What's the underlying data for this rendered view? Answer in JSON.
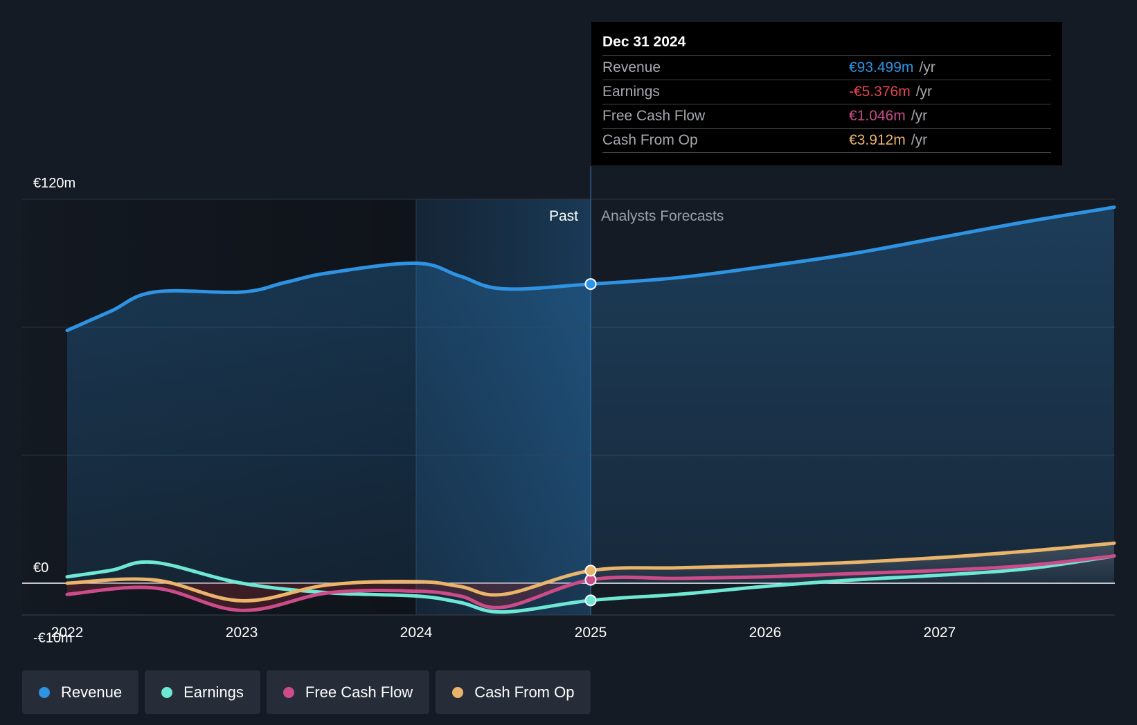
{
  "colors": {
    "revenue": "#2e93e2",
    "earnings": "#6ee8d4",
    "fcf": "#cc4c8a",
    "cfo": "#eab56a",
    "earnings_neg": "#e8434e"
  },
  "tooltip": {
    "date": "Dec 31 2024",
    "rows": [
      {
        "label": "Revenue",
        "value": "€93.499m",
        "unit": "/yr"
      },
      {
        "label": "Earnings",
        "value": "-€5.376m",
        "unit": "/yr"
      },
      {
        "label": "Free Cash Flow",
        "value": "€1.046m",
        "unit": "/yr"
      },
      {
        "label": "Cash From Op",
        "value": "€3.912m",
        "unit": "/yr"
      }
    ]
  },
  "legend": [
    {
      "label": "Revenue",
      "color": "#2e93e2"
    },
    {
      "label": "Earnings",
      "color": "#6ee8d4"
    },
    {
      "label": "Free Cash Flow",
      "color": "#cc4c8a"
    },
    {
      "label": "Cash From Op",
      "color": "#eab56a"
    }
  ],
  "chart_data": {
    "type": "line",
    "title": "",
    "xlabel": "",
    "ylabel": "",
    "xlim": [
      2022,
      2028
    ],
    "ylim": [
      -10,
      120
    ],
    "y_tick_labels": [
      "€120m",
      "€0",
      "-€10m"
    ],
    "y_tick_values": [
      120,
      0,
      -10
    ],
    "x_ticks": [
      2022,
      2023,
      2024,
      2025,
      2026,
      2027
    ],
    "past_label": "Past",
    "forecast_label": "Analysts Forecasts",
    "divider_x": 2025,
    "highlight_start_x": 2024,
    "series": [
      {
        "name": "Revenue",
        "points": [
          [
            2022,
            79
          ],
          [
            2022.25,
            85
          ],
          [
            2022.5,
            91
          ],
          [
            2023,
            91
          ],
          [
            2023.25,
            94
          ],
          [
            2023.5,
            97
          ],
          [
            2024,
            100
          ],
          [
            2024.25,
            96
          ],
          [
            2024.5,
            92
          ],
          [
            2025,
            93.5
          ],
          [
            2025.5,
            95.5
          ],
          [
            2026,
            99
          ],
          [
            2026.5,
            103
          ],
          [
            2027,
            108
          ],
          [
            2027.5,
            113
          ],
          [
            2028,
            117.5
          ]
        ]
      },
      {
        "name": "Earnings",
        "points": [
          [
            2022,
            2
          ],
          [
            2022.25,
            4
          ],
          [
            2022.5,
            6.5
          ],
          [
            2023,
            0
          ],
          [
            2023.5,
            -3
          ],
          [
            2024,
            -4
          ],
          [
            2024.25,
            -6
          ],
          [
            2024.5,
            -9
          ],
          [
            2025,
            -5.376
          ],
          [
            2025.5,
            -3.5
          ],
          [
            2026,
            -1
          ],
          [
            2026.5,
            1
          ],
          [
            2027,
            2.5
          ],
          [
            2027.5,
            4.5
          ],
          [
            2028,
            8.5
          ]
        ]
      },
      {
        "name": "Free Cash Flow",
        "points": [
          [
            2022,
            -3.5
          ],
          [
            2022.5,
            -1.5
          ],
          [
            2023,
            -8.5
          ],
          [
            2023.5,
            -3
          ],
          [
            2024,
            -2.5
          ],
          [
            2024.25,
            -4
          ],
          [
            2024.5,
            -7.5
          ],
          [
            2025,
            1.046
          ],
          [
            2025.5,
            1.5
          ],
          [
            2026,
            2
          ],
          [
            2026.5,
            3
          ],
          [
            2027,
            4
          ],
          [
            2027.5,
            5.5
          ],
          [
            2028,
            8.5
          ]
        ]
      },
      {
        "name": "Cash From Op",
        "points": [
          [
            2022,
            0
          ],
          [
            2022.5,
            1
          ],
          [
            2023,
            -5.5
          ],
          [
            2023.5,
            -0.5
          ],
          [
            2024,
            0.5
          ],
          [
            2024.25,
            -1
          ],
          [
            2024.5,
            -3.5
          ],
          [
            2025,
            3.912
          ],
          [
            2025.5,
            4.8
          ],
          [
            2026,
            5.5
          ],
          [
            2026.5,
            6.5
          ],
          [
            2027,
            8
          ],
          [
            2027.5,
            10
          ],
          [
            2028,
            12.5
          ]
        ]
      }
    ]
  }
}
